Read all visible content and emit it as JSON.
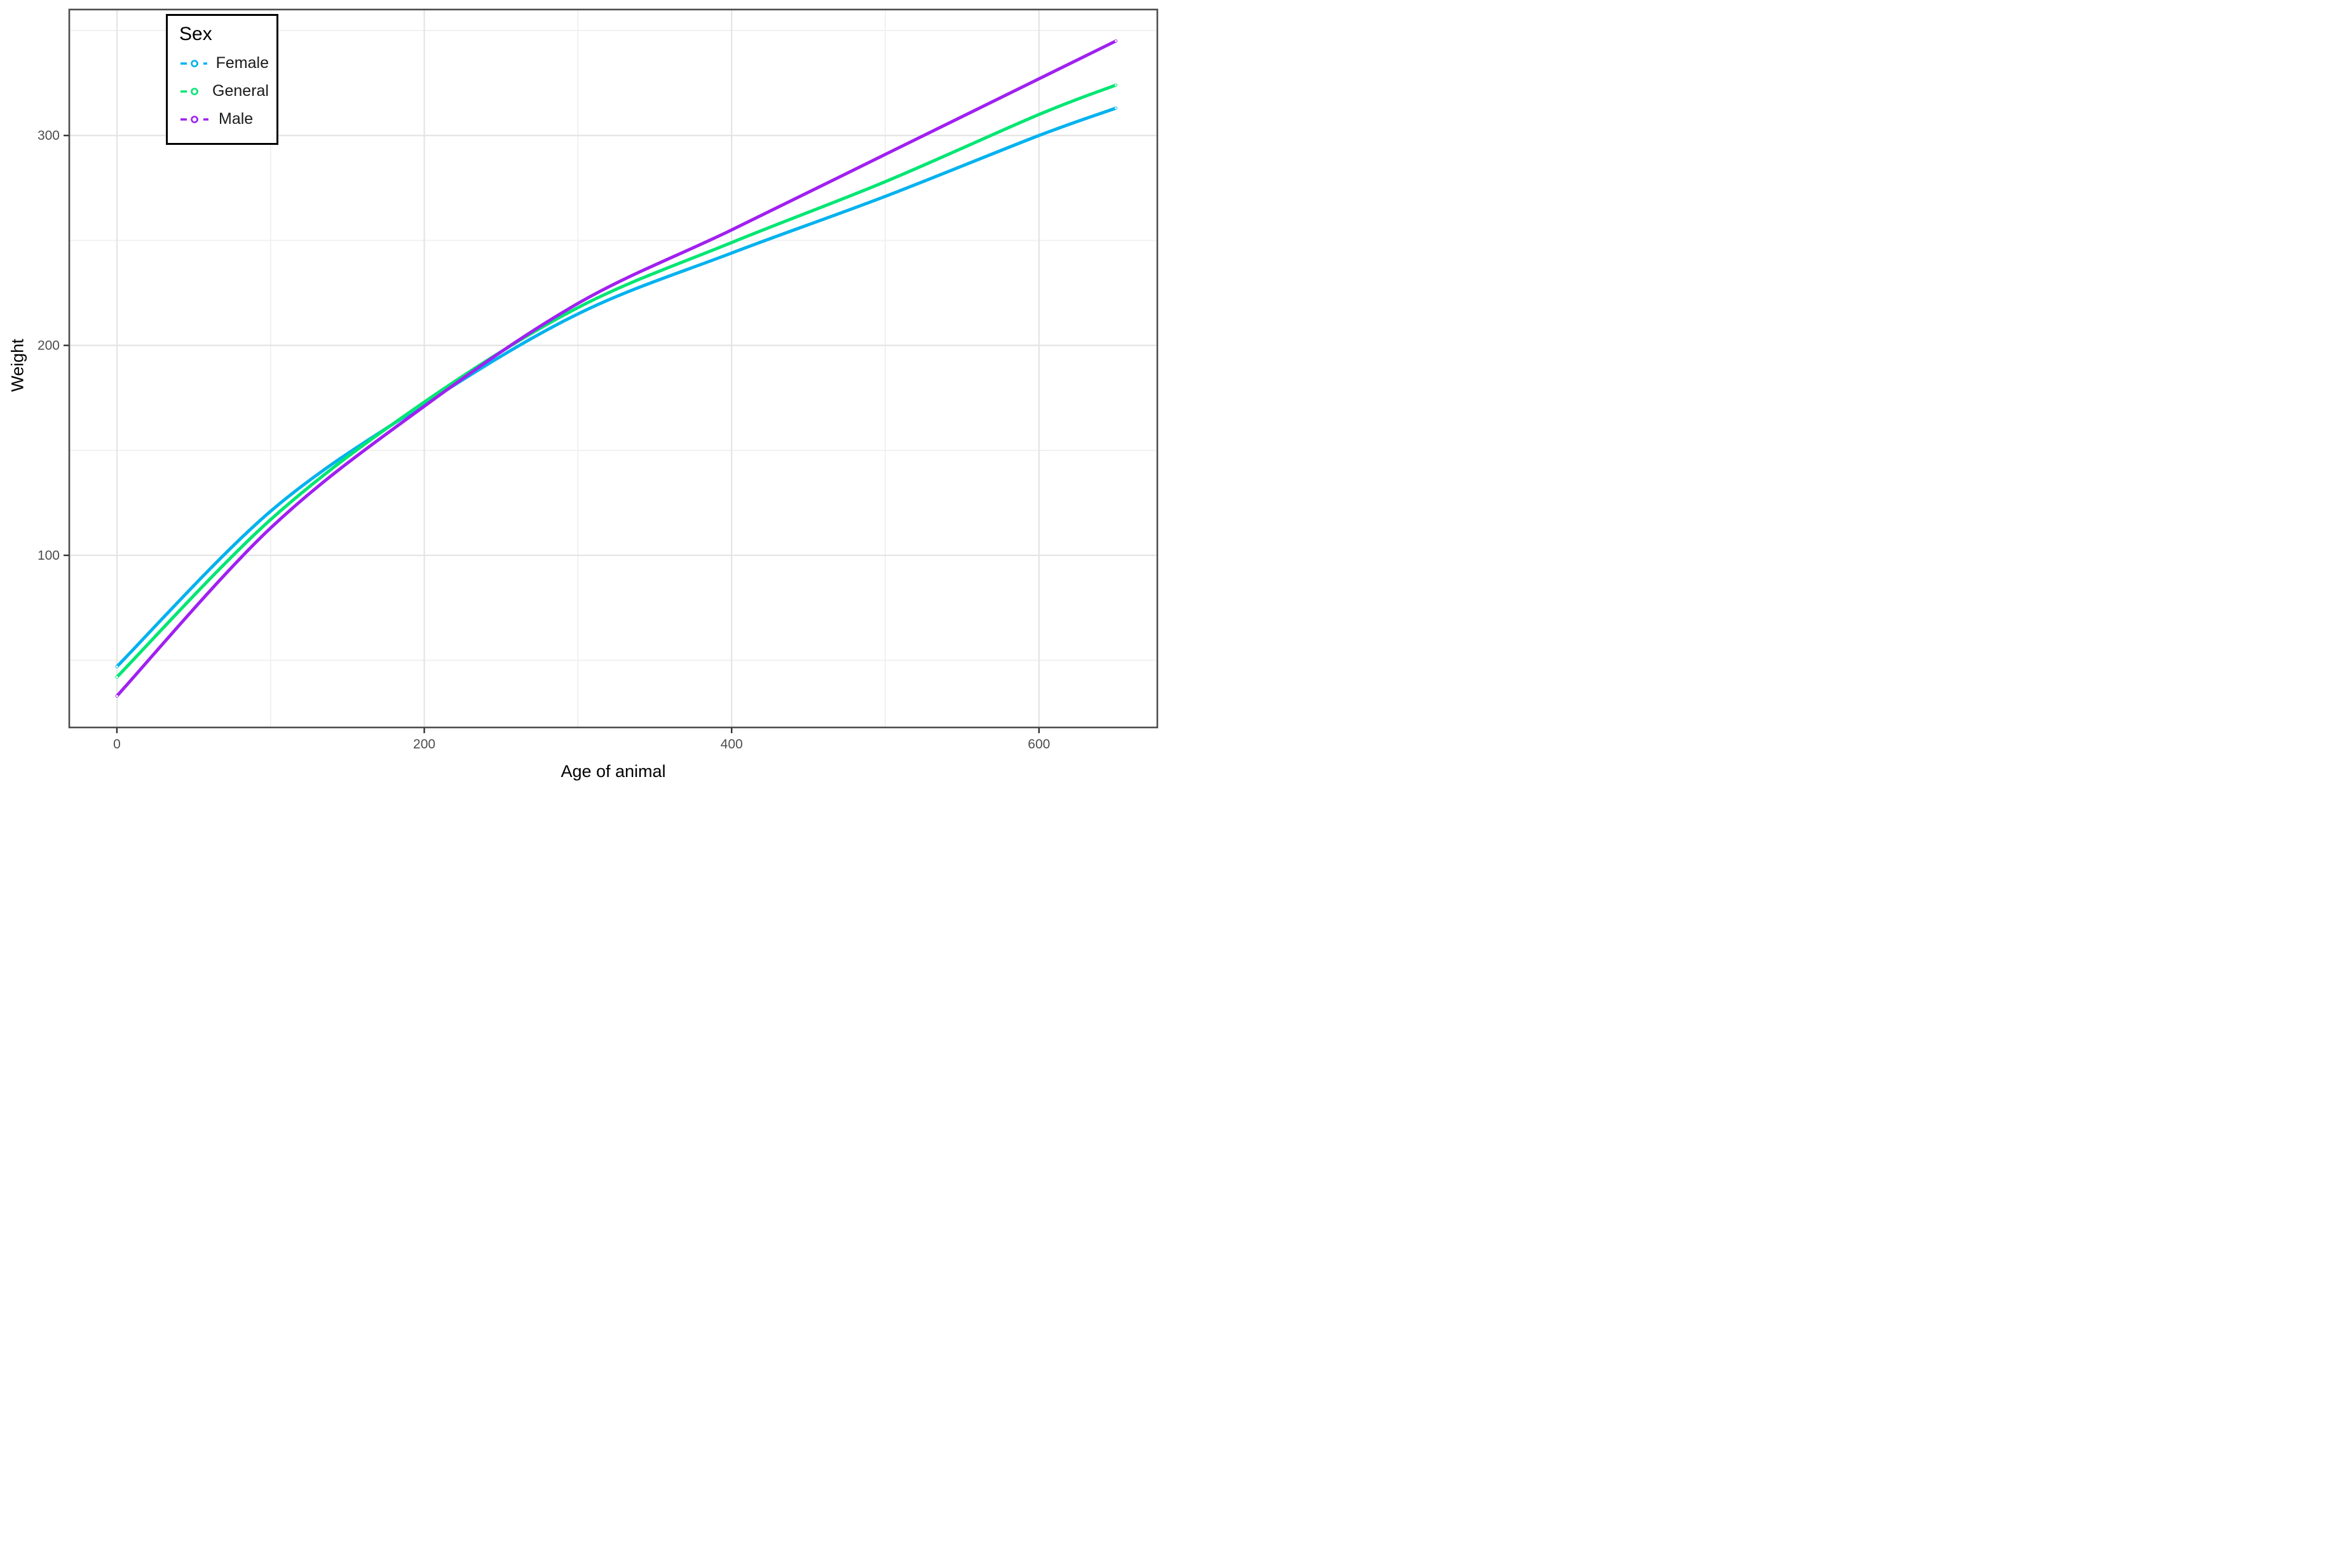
{
  "chart_data": {
    "type": "line",
    "title": "",
    "xlabel": "Age of animal",
    "ylabel": "Weight",
    "x_ticks": [
      0,
      200,
      400,
      600
    ],
    "y_ticks": [
      100,
      200,
      300
    ],
    "x_minor_ticks": [
      100,
      300,
      500
    ],
    "y_minor_ticks": [
      50,
      150,
      250,
      350
    ],
    "xlim": [
      -31,
      677
    ],
    "ylim": [
      18,
      360
    ],
    "grid": "major+minor",
    "legend": {
      "title": "Sex",
      "position": "top-left-inside",
      "entries": [
        {
          "label": "Female",
          "color": "#00B2EE"
        },
        {
          "label": "General",
          "color": "#00E673"
        },
        {
          "label": "Male",
          "color": "#A020F0"
        }
      ]
    },
    "series": [
      {
        "name": "Female",
        "color": "#00B2EE",
        "points": [
          [
            0,
            47
          ],
          [
            100,
            121
          ],
          [
            200,
            172
          ],
          [
            300,
            215
          ],
          [
            400,
            244
          ],
          [
            500,
            271
          ],
          [
            600,
            300
          ],
          [
            650,
            313
          ]
        ]
      },
      {
        "name": "General",
        "color": "#00E673",
        "points": [
          [
            0,
            42
          ],
          [
            100,
            117
          ],
          [
            200,
            173
          ],
          [
            300,
            218
          ],
          [
            400,
            249
          ],
          [
            500,
            278
          ],
          [
            600,
            310
          ],
          [
            650,
            324
          ]
        ]
      },
      {
        "name": "Male",
        "color": "#A020F0",
        "points": [
          [
            0,
            33
          ],
          [
            100,
            113
          ],
          [
            200,
            171
          ],
          [
            300,
            220
          ],
          [
            400,
            255
          ],
          [
            500,
            291
          ],
          [
            600,
            327
          ],
          [
            650,
            345
          ]
        ]
      }
    ]
  },
  "colors": {
    "background": "#ffffff",
    "panel_border": "#4d4d4d",
    "grid_major": "#e4e4e4",
    "grid_minor": "#f1f1f1",
    "tick_mark": "#333333",
    "tick_label": "#4d4d4d",
    "axis_title": "#000000"
  }
}
